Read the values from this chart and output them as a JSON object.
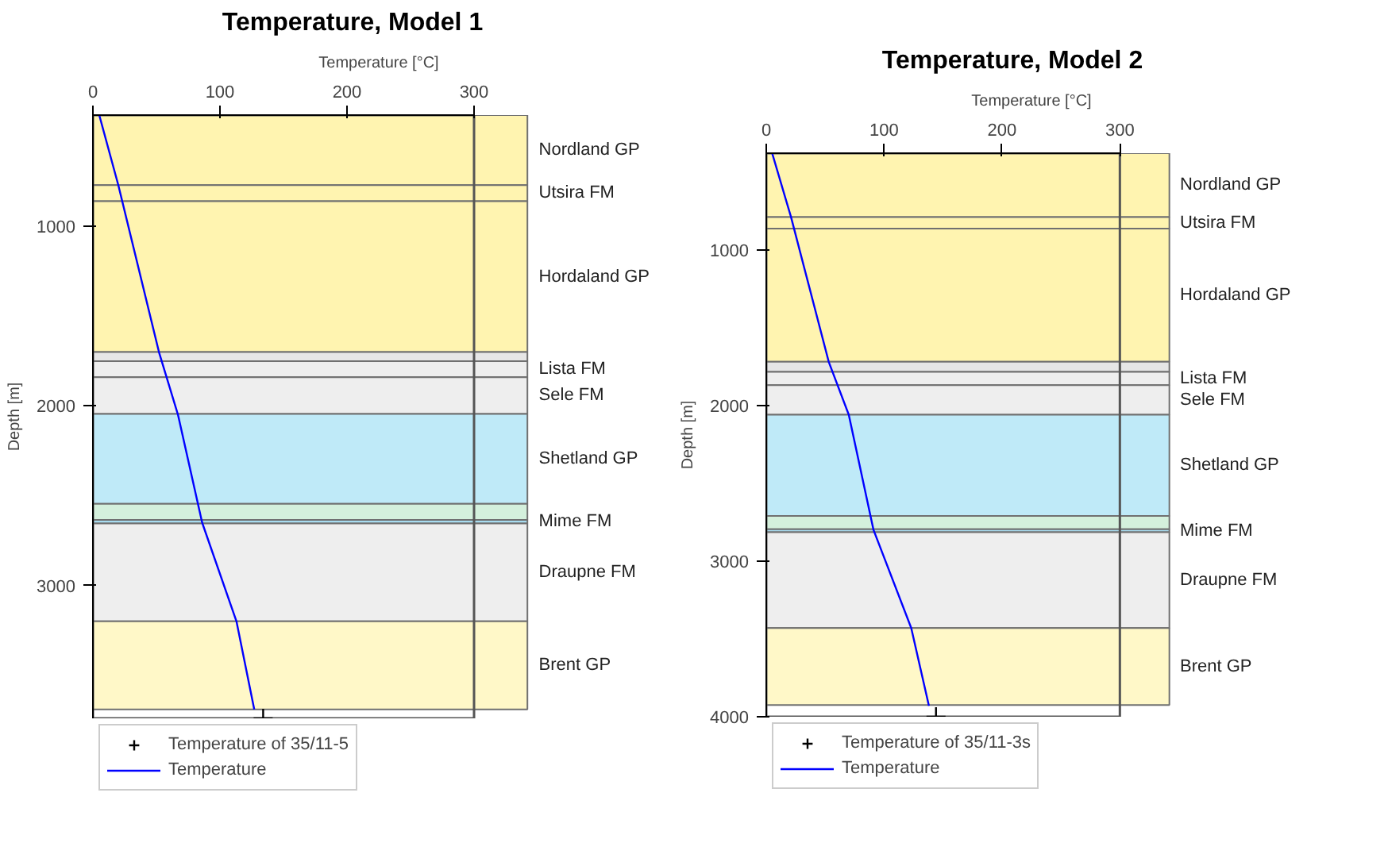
{
  "chart_data": [
    {
      "type": "line",
      "title": "Temperature, Model 1",
      "xlabel": "Temperature [°C]",
      "ylabel": "Depth [m]",
      "xlim": [
        0,
        300
      ],
      "xticks": [
        0,
        100,
        200,
        300
      ],
      "ylim": [
        3740,
        380
      ],
      "yticks": [
        1000,
        2000,
        3000
      ],
      "legend": "bottom",
      "series": [
        {
          "name": "Temperature of 35/11-5",
          "type": "scatter",
          "marker": "cross",
          "color": "#000000",
          "x": [
            134
          ],
          "values": [
            3740
          ]
        },
        {
          "name": "Temperature",
          "color": "#0000ff",
          "x": [
            5,
            20,
            52,
            67,
            86,
            113,
            127
          ],
          "values": [
            380,
            770,
            1700,
            2050,
            2650,
            3200,
            3690
          ]
        }
      ],
      "bands": [
        {
          "axis": "y",
          "from": 380,
          "to": 770,
          "label": "Nordland GP",
          "color": "#fff4b0"
        },
        {
          "axis": "y",
          "from": 770,
          "to": 860,
          "label": "Utsira FM",
          "color": "#fff4b0"
        },
        {
          "axis": "y",
          "from": 860,
          "to": 1700,
          "label": "Hordaland GP",
          "color": "#fff4b0"
        },
        {
          "axis": "y",
          "from": 1700,
          "to": 1750,
          "label": null,
          "color": "#e6e6e6"
        },
        {
          "axis": "y",
          "from": 1750,
          "to": 1840,
          "label": "Lista FM",
          "color": "#eeeeee"
        },
        {
          "axis": "y",
          "from": 1840,
          "to": 2045,
          "label": "Sele FM",
          "color": "#eeeeee"
        },
        {
          "axis": "y",
          "from": 2045,
          "to": 2545,
          "label": "Shetland GP",
          "color": "#bfeaf8"
        },
        {
          "axis": "y",
          "from": 2545,
          "to": 2635,
          "label": null,
          "color": "#d4f0dc"
        },
        {
          "axis": "y",
          "from": 2635,
          "to": 2655,
          "label": "Mime FM",
          "color": "#a8dcf0"
        },
        {
          "axis": "y",
          "from": 2655,
          "to": 3200,
          "label": "Draupne FM",
          "color": "#eeeeee"
        },
        {
          "axis": "y",
          "from": 3200,
          "to": 3690,
          "label": "Brent GP",
          "color": "#fff8c8"
        }
      ]
    },
    {
      "type": "line",
      "title": "Temperature, Model 2",
      "xlabel": "Temperature [°C]",
      "ylabel": "Depth [m]",
      "xlim": [
        0,
        300
      ],
      "xticks": [
        0,
        100,
        200,
        300
      ],
      "ylim": [
        4000,
        380
      ],
      "yticks": [
        1000,
        2000,
        3000,
        4000
      ],
      "legend": "bottom",
      "series": [
        {
          "name": "Temperature of 35/11-3s",
          "type": "scatter",
          "marker": "cross",
          "color": "#000000",
          "x": [
            144
          ],
          "values": [
            4000
          ]
        },
        {
          "name": "Temperature",
          "color": "#0000ff",
          "x": [
            5,
            21,
            53,
            70,
            91,
            123,
            138
          ],
          "values": [
            380,
            790,
            1720,
            2060,
            2800,
            3430,
            3930
          ]
        }
      ],
      "bands": [
        {
          "axis": "y",
          "from": 380,
          "to": 790,
          "label": "Nordland GP",
          "color": "#fff4b0"
        },
        {
          "axis": "y",
          "from": 790,
          "to": 865,
          "label": "Utsira FM",
          "color": "#fff4b0"
        },
        {
          "axis": "y",
          "from": 865,
          "to": 1720,
          "label": "Hordaland GP",
          "color": "#fff4b0"
        },
        {
          "axis": "y",
          "from": 1720,
          "to": 1785,
          "label": null,
          "color": "#e6e6e6"
        },
        {
          "axis": "y",
          "from": 1785,
          "to": 1870,
          "label": "Lista FM",
          "color": "#eeeeee"
        },
        {
          "axis": "y",
          "from": 1870,
          "to": 2060,
          "label": "Sele FM",
          "color": "#eeeeee"
        },
        {
          "axis": "y",
          "from": 2060,
          "to": 2710,
          "label": "Shetland GP",
          "color": "#bfeaf8"
        },
        {
          "axis": "y",
          "from": 2710,
          "to": 2795,
          "label": null,
          "color": "#d4f0dc"
        },
        {
          "axis": "y",
          "from": 2795,
          "to": 2815,
          "label": "Mime FM",
          "color": "#a8dcf0"
        },
        {
          "axis": "y",
          "from": 2815,
          "to": 3430,
          "label": "Draupne FM",
          "color": "#eeeeee"
        },
        {
          "axis": "y",
          "from": 3430,
          "to": 3925,
          "label": "Brent GP",
          "color": "#fff8c8"
        }
      ]
    }
  ]
}
